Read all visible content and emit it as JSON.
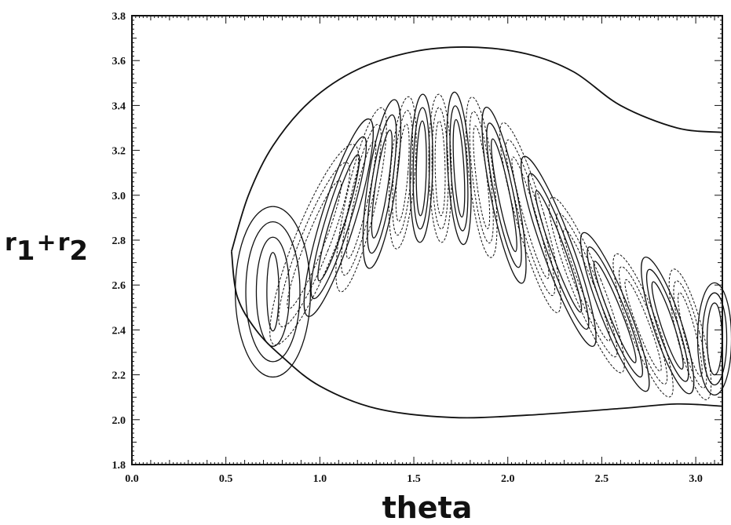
{
  "chart_data": {
    "type": "contour",
    "xlabel": "theta",
    "ylabel_parts": {
      "r1": "r",
      "sub1": "1",
      "plus": "+",
      "r2": "r",
      "sub2": "2"
    },
    "xlim": [
      0.0,
      3.1416
    ],
    "ylim": [
      1.8,
      3.8
    ],
    "x_ticks": [
      "0.0",
      "0.5",
      "1.0",
      "1.5",
      "2.0",
      "2.5",
      "3.0"
    ],
    "x_tick_values": [
      0.0,
      0.5,
      1.0,
      1.5,
      2.0,
      2.5,
      3.0
    ],
    "y_ticks": [
      "1.8",
      "2.0",
      "2.2",
      "2.4",
      "2.6",
      "2.8",
      "3.0",
      "3.2",
      "3.4",
      "3.6",
      "3.8"
    ],
    "y_tick_values": [
      1.8,
      2.0,
      2.2,
      2.4,
      2.6,
      2.8,
      3.0,
      3.2,
      3.4,
      3.6,
      3.8
    ],
    "boundary": {
      "upper": [
        [
          3.14,
          3.28
        ],
        [
          2.9,
          3.3
        ],
        [
          2.6,
          3.4
        ],
        [
          2.35,
          3.55
        ],
        [
          2.1,
          3.63
        ],
        [
          1.8,
          3.66
        ],
        [
          1.5,
          3.64
        ],
        [
          1.2,
          3.56
        ],
        [
          0.95,
          3.42
        ],
        [
          0.75,
          3.22
        ],
        [
          0.62,
          3.0
        ],
        [
          0.53,
          2.75
        ]
      ],
      "lower": [
        [
          0.53,
          2.75
        ],
        [
          0.56,
          2.55
        ],
        [
          0.66,
          2.4
        ],
        [
          0.8,
          2.28
        ],
        [
          1.0,
          2.15
        ],
        [
          1.3,
          2.05
        ],
        [
          1.7,
          2.01
        ],
        [
          2.1,
          2.02
        ],
        [
          2.6,
          2.05
        ],
        [
          2.9,
          2.07
        ],
        [
          3.14,
          2.06
        ]
      ]
    },
    "lobes": [
      {
        "x": 0.75,
        "y": 2.57,
        "sign": "+",
        "halfwidth": 0.2,
        "halfheight": 0.38,
        "tilt": 0.0,
        "levels": 4
      },
      {
        "x": 0.97,
        "y": 2.78,
        "sign": "-",
        "halfwidth": 0.11,
        "halfheight": 0.48,
        "tilt": 0.38,
        "levels": 3
      },
      {
        "x": 1.1,
        "y": 2.9,
        "sign": "+",
        "halfwidth": 0.09,
        "halfheight": 0.46,
        "tilt": 0.3,
        "levels": 3
      },
      {
        "x": 1.22,
        "y": 2.98,
        "sign": "-",
        "halfwidth": 0.08,
        "halfheight": 0.42,
        "tilt": 0.22,
        "levels": 3
      },
      {
        "x": 1.33,
        "y": 3.05,
        "sign": "+",
        "halfwidth": 0.075,
        "halfheight": 0.38,
        "tilt": 0.15,
        "levels": 3
      },
      {
        "x": 1.44,
        "y": 3.1,
        "sign": "-",
        "halfwidth": 0.065,
        "halfheight": 0.34,
        "tilt": 0.08,
        "levels": 3
      },
      {
        "x": 1.54,
        "y": 3.12,
        "sign": "+",
        "halfwidth": 0.06,
        "halfheight": 0.33,
        "tilt": 0.02,
        "levels": 3
      },
      {
        "x": 1.64,
        "y": 3.12,
        "sign": "-",
        "halfwidth": 0.06,
        "halfheight": 0.33,
        "tilt": -0.02,
        "levels": 3
      },
      {
        "x": 1.74,
        "y": 3.12,
        "sign": "+",
        "halfwidth": 0.06,
        "halfheight": 0.34,
        "tilt": -0.06,
        "levels": 3
      },
      {
        "x": 1.86,
        "y": 3.08,
        "sign": "-",
        "halfwidth": 0.065,
        "halfheight": 0.36,
        "tilt": -0.12,
        "levels": 3
      },
      {
        "x": 1.98,
        "y": 3.0,
        "sign": "+",
        "halfwidth": 0.07,
        "halfheight": 0.4,
        "tilt": -0.2,
        "levels": 3
      },
      {
        "x": 2.12,
        "y": 2.9,
        "sign": "-",
        "halfwidth": 0.075,
        "halfheight": 0.44,
        "tilt": -0.28,
        "levels": 3
      },
      {
        "x": 2.27,
        "y": 2.75,
        "sign": "+",
        "halfwidth": 0.08,
        "halfheight": 0.45,
        "tilt": -0.35,
        "levels": 3
      },
      {
        "x": 2.42,
        "y": 2.6,
        "sign": "-",
        "halfwidth": 0.08,
        "halfheight": 0.42,
        "tilt": -0.38,
        "levels": 3
      },
      {
        "x": 2.57,
        "y": 2.48,
        "sign": "+",
        "halfwidth": 0.075,
        "halfheight": 0.38,
        "tilt": -0.38,
        "levels": 3
      },
      {
        "x": 2.72,
        "y": 2.42,
        "sign": "-",
        "halfwidth": 0.075,
        "halfheight": 0.34,
        "tilt": -0.36,
        "levels": 3
      },
      {
        "x": 2.85,
        "y": 2.42,
        "sign": "+",
        "halfwidth": 0.075,
        "halfheight": 0.32,
        "tilt": -0.32,
        "levels": 3
      },
      {
        "x": 2.97,
        "y": 2.38,
        "sign": "-",
        "halfwidth": 0.07,
        "halfheight": 0.3,
        "tilt": -0.25,
        "levels": 3
      },
      {
        "x": 3.1,
        "y": 2.36,
        "sign": "+",
        "halfwidth": 0.09,
        "halfheight": 0.25,
        "tilt": 0.0,
        "levels": 3
      }
    ],
    "grid": false,
    "legend": "none",
    "colors": {
      "line": "#111111",
      "background": "#ffffff"
    }
  }
}
